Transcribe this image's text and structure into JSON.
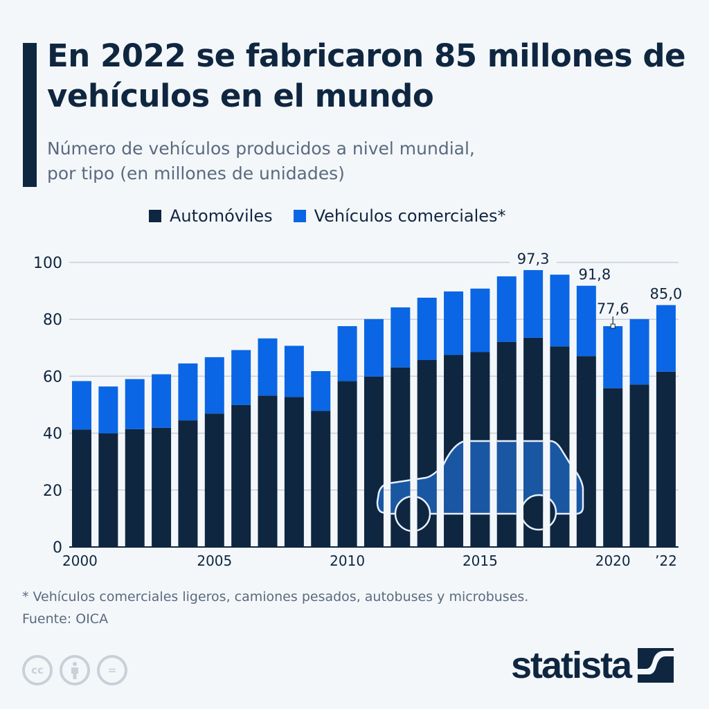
{
  "header": {
    "title": "En 2022 se fabricaron 85 millones de vehículos en el mundo",
    "subtitle_line1": "Número de vehículos producidos a nivel mundial,",
    "subtitle_line2": "por tipo (en millones de unidades)"
  },
  "colors": {
    "automoviles": "#0f2640",
    "comerciales": "#0a66e4",
    "background": "#f4f7fa"
  },
  "chart_data": {
    "type": "bar",
    "stacked": true,
    "categories": [
      "2000",
      "2001",
      "2002",
      "2003",
      "2004",
      "2005",
      "2006",
      "2007",
      "2008",
      "2009",
      "2010",
      "2011",
      "2012",
      "2013",
      "2014",
      "2015",
      "2016",
      "2017",
      "2018",
      "2019",
      "2020",
      "2021",
      "2022"
    ],
    "series": [
      {
        "name": "Automóviles",
        "color": "#0f2640",
        "values": [
          41.3,
          39.9,
          41.4,
          41.9,
          44.5,
          46.9,
          49.9,
          53.2,
          52.7,
          47.8,
          58.3,
          59.9,
          63.1,
          65.7,
          67.5,
          68.5,
          72.1,
          73.5,
          70.5,
          67.1,
          55.8,
          57.1,
          61.6
        ]
      },
      {
        "name": "Vehículos comerciales*",
        "color": "#0a66e4",
        "values": [
          17.0,
          16.5,
          17.6,
          18.8,
          20.0,
          19.8,
          19.3,
          20.1,
          18.0,
          14.0,
          19.3,
          20.2,
          21.1,
          21.9,
          22.3,
          22.3,
          23.0,
          23.8,
          25.2,
          24.7,
          21.8,
          23.0,
          23.4
        ]
      }
    ],
    "totals_labels": [
      {
        "category": "2017",
        "text": "97,3"
      },
      {
        "category": "2019",
        "text": "91,8"
      },
      {
        "category": "2020",
        "text": "77,6"
      },
      {
        "category": "2022",
        "text": "85,0"
      }
    ],
    "x_tick_labels": [
      {
        "category": "2000",
        "text": "2000"
      },
      {
        "category": "2005",
        "text": "2005"
      },
      {
        "category": "2010",
        "text": "2010"
      },
      {
        "category": "2015",
        "text": "2015"
      },
      {
        "category": "2020",
        "text": "2020"
      },
      {
        "category": "2022",
        "text": "’22"
      }
    ],
    "y_ticks": [
      "0",
      "20",
      "40",
      "60",
      "80",
      "100"
    ],
    "ylim": [
      0,
      100
    ],
    "grid": true,
    "legend": "top",
    "decoration": "car-outline"
  },
  "footer": {
    "note": "* Vehículos comerciales ligeros, camiones pesados, autobuses y microbuses.",
    "source": "Fuente: OICA",
    "license_icons": [
      "cc-icon",
      "attribution-icon",
      "no-derivatives-icon"
    ],
    "cc_text": "cc",
    "nd_text": "=",
    "brand": "statista"
  }
}
